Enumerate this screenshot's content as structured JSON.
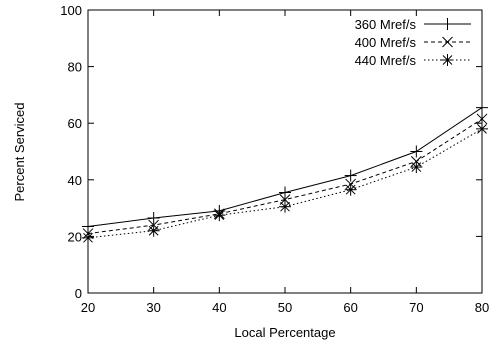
{
  "chart_data": {
    "type": "line",
    "title": "",
    "xlabel": "Local Percentage",
    "ylabel": "Percent Serviced",
    "xlim": [
      20,
      80
    ],
    "ylim": [
      0,
      100
    ],
    "x_ticks": [
      20,
      30,
      40,
      50,
      60,
      70,
      80
    ],
    "y_ticks": [
      0,
      20,
      40,
      60,
      80,
      100
    ],
    "grid": false,
    "legend_position": "top-right",
    "x": [
      20,
      30,
      40,
      50,
      60,
      70,
      80
    ],
    "series": [
      {
        "name": "360 Mref/s",
        "values": [
          23.5,
          26.5,
          29,
          35.5,
          41.5,
          50,
          65.5
        ],
        "marker": "plus",
        "line_style": "solid",
        "color": "#000000"
      },
      {
        "name": "400 Mref/s",
        "values": [
          21,
          24,
          28,
          33,
          38.5,
          46.5,
          61.5
        ],
        "marker": "cross",
        "line_style": "dashed",
        "color": "#000000"
      },
      {
        "name": "440 Mref/s",
        "values": [
          19.5,
          22,
          27.5,
          30.5,
          36.5,
          44.5,
          58
        ],
        "marker": "star",
        "line_style": "dotted",
        "color": "#000000"
      }
    ]
  }
}
